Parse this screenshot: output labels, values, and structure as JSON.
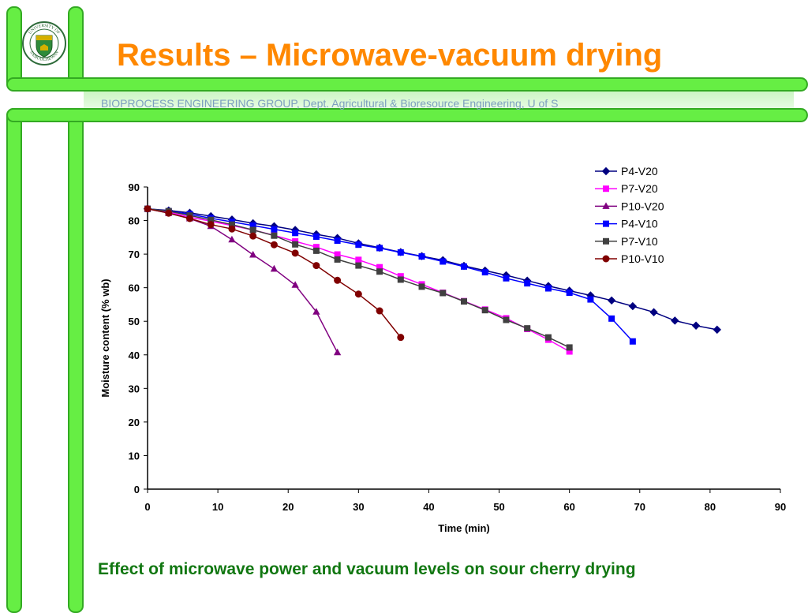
{
  "header": {
    "title": "Results – Microwave-vacuum drying",
    "subtitle": "BIOPROCESS ENGINEERING GROUP, Dept. Agricultural & Bioresource Engineering, U of S",
    "logo_text_top": "UNIVERSITY OF",
    "logo_text_bottom": "SASKATCHEWAN"
  },
  "caption": "Effect of microwave power and vacuum levels on sour cherry drying",
  "colors": {
    "title": "#ff8800",
    "frame": "#66ee44",
    "caption": "#117711"
  },
  "chart_data": {
    "type": "line",
    "xlabel": "Time (min)",
    "ylabel": "Moisture content (% wb)",
    "xlim": [
      0,
      90
    ],
    "ylim": [
      0,
      90
    ],
    "xticks": [
      0,
      10,
      20,
      30,
      40,
      50,
      60,
      70,
      80,
      90
    ],
    "yticks": [
      0,
      10,
      20,
      30,
      40,
      50,
      60,
      70,
      80,
      90
    ],
    "legend_position": "top-right",
    "series": [
      {
        "name": "P4-V20",
        "color": "#000080",
        "marker": "diamond",
        "x": [
          0,
          3,
          6,
          9,
          12,
          15,
          18,
          21,
          24,
          27,
          30,
          33,
          36,
          39,
          42,
          45,
          48,
          51,
          54,
          57,
          60,
          63,
          66,
          69,
          72,
          75,
          78,
          81
        ],
        "y": [
          83.5,
          83,
          82.3,
          81.3,
          80.3,
          79.2,
          78.3,
          77.2,
          75.9,
          74.8,
          73.2,
          71.9,
          70.6,
          69.4,
          68.2,
          66.5,
          65.1,
          63.7,
          62.1,
          60.5,
          59.1,
          57.7,
          56.2,
          54.5,
          52.7,
          50.2,
          48.7,
          47.5
        ]
      },
      {
        "name": "P7-V20",
        "color": "#ff00ff",
        "marker": "square",
        "x": [
          0,
          3,
          6,
          9,
          12,
          15,
          18,
          21,
          24,
          27,
          30,
          33,
          36,
          39,
          42,
          45,
          48,
          51,
          54,
          57,
          60
        ],
        "y": [
          83.5,
          82.5,
          81,
          79.8,
          78.5,
          77.2,
          75.6,
          73.8,
          72.1,
          69.9,
          68.3,
          66.1,
          63.4,
          61,
          58.5,
          56,
          53.5,
          50.9,
          47.7,
          44.5,
          41
        ]
      },
      {
        "name": "P10-V20",
        "color": "#800080",
        "marker": "triangle",
        "x": [
          0,
          3,
          6,
          9,
          12,
          15,
          18,
          21,
          24,
          27
        ],
        "y": [
          83.5,
          82.2,
          80.6,
          78.3,
          74.3,
          69.8,
          65.6,
          60.8,
          52.8,
          40.7
        ]
      },
      {
        "name": "P4-V10",
        "color": "#0000ff",
        "marker": "square",
        "x": [
          0,
          3,
          6,
          9,
          12,
          15,
          18,
          21,
          24,
          27,
          30,
          33,
          36,
          39,
          42,
          45,
          48,
          51,
          54,
          57,
          60,
          63,
          66,
          69
        ],
        "y": [
          83.5,
          82.8,
          81.9,
          80.7,
          79.6,
          78.5,
          77.4,
          76.3,
          75.2,
          74,
          72.8,
          71.8,
          70.5,
          69.3,
          67.8,
          66.3,
          64.6,
          62.8,
          61.3,
          59.8,
          58.5,
          56.5,
          50.8,
          44
        ]
      },
      {
        "name": "P7-V10",
        "color": "#404040",
        "marker": "square",
        "x": [
          0,
          3,
          6,
          9,
          12,
          15,
          18,
          21,
          24,
          27,
          30,
          33,
          36,
          39,
          42,
          45,
          48,
          51,
          54,
          57,
          60
        ],
        "y": [
          83.5,
          82.8,
          81.5,
          80.2,
          78.8,
          77.2,
          75.5,
          72.9,
          71,
          68.4,
          66.6,
          64.8,
          62.4,
          60.3,
          58.4,
          55.9,
          53.3,
          50.4,
          47.9,
          45.2,
          42.2
        ]
      },
      {
        "name": "P10-V10",
        "color": "#800000",
        "marker": "circle",
        "x": [
          0,
          3,
          6,
          9,
          12,
          15,
          18,
          21,
          24,
          27,
          30,
          33,
          36
        ],
        "y": [
          83.5,
          82.2,
          80.6,
          78.8,
          77.5,
          75.4,
          72.8,
          70.3,
          66.6,
          62.2,
          58.1,
          53.1,
          45.2
        ]
      }
    ]
  }
}
